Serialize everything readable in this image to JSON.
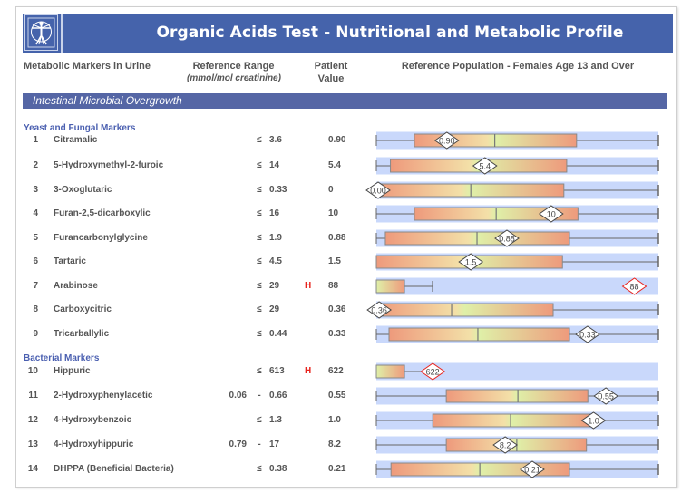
{
  "header": {
    "title": "Organic Acids Test - Nutritional and Metabolic Profile",
    "logo_icon": "vitruvian-man-icon"
  },
  "columns": {
    "marker": "Metabolic Markers in Urine",
    "reference_range": "Reference Range",
    "reference_units": "(mmol/mol creatinine)",
    "patient_line1": "Patient",
    "patient_line2": "Value",
    "population": "Reference Population - Females Age 13 and Over"
  },
  "section": {
    "title": "Intestinal Microbial Overgrowth"
  },
  "groups": [
    {
      "title": "Yeast and Fungal Markers"
    },
    {
      "title": "Bacterial Markers"
    }
  ],
  "colors": {
    "header_bg": "#4563ab",
    "section_bg": "#5566a5",
    "band_bg": "#c9d8fb",
    "box_outer": "#ee9a7c",
    "box_mid": "#f3e0a8",
    "box_center": "#dff0a8",
    "flag_high": "#e8231d",
    "group_title": "#4a5fb0"
  },
  "chart_data": {
    "type": "box-range",
    "title": "Reference Population - Females Age 13 and Over",
    "rows": [
      {
        "num": "1",
        "name": "Citramalic",
        "ref_low": "",
        "ref_sep": "≤",
        "ref_high": "3.6",
        "flag": "",
        "value": "0.90",
        "label": "0.90",
        "box": [
          0.135,
          0.71
        ],
        "median": 0.42,
        "whisker": [
          0,
          1
        ],
        "marker": 0.25,
        "high": false
      },
      {
        "num": "2",
        "name": "5-Hydroxymethyl-2-furoic",
        "ref_low": "",
        "ref_sep": "≤",
        "ref_high": "14",
        "flag": "",
        "value": "5.4",
        "label": "5.4",
        "box": [
          0.05,
          0.675
        ],
        "median": null,
        "whisker": [
          0,
          1
        ],
        "marker": 0.385,
        "high": false
      },
      {
        "num": "3",
        "name": "3-Oxoglutaric",
        "ref_low": "",
        "ref_sep": "≤",
        "ref_high": "0.33",
        "flag": "",
        "value": "0",
        "label": "0.00",
        "box": [
          0,
          0.665
        ],
        "median": 0.335,
        "whisker": [
          0,
          1
        ],
        "marker": 0,
        "high": false
      },
      {
        "num": "4",
        "name": "Furan-2,5-dicarboxylic",
        "ref_low": "",
        "ref_sep": "≤",
        "ref_high": "16",
        "flag": "",
        "value": "10",
        "label": "10",
        "box": [
          0.135,
          0.715
        ],
        "median": 0.425,
        "whisker": [
          0,
          1
        ],
        "marker": 0.62,
        "high": false
      },
      {
        "num": "5",
        "name": "Furancarbonylglycine",
        "ref_low": "",
        "ref_sep": "≤",
        "ref_high": "1.9",
        "flag": "",
        "value": "0.88",
        "label": "0.88",
        "box": [
          0.032,
          0.685
        ],
        "median": 0.357,
        "whisker": [
          0,
          1
        ],
        "marker": 0.463,
        "high": false
      },
      {
        "num": "6",
        "name": "Tartaric",
        "ref_low": "",
        "ref_sep": "≤",
        "ref_high": "4.5",
        "flag": "",
        "value": "1.5",
        "label": "1.5",
        "box": [
          0,
          0.66
        ],
        "median": null,
        "whisker": [
          0,
          1
        ],
        "marker": 0.335,
        "high": false
      },
      {
        "num": "7",
        "name": "Arabinose",
        "ref_low": "",
        "ref_sep": "≤",
        "ref_high": "29",
        "flag": "H",
        "value": "88",
        "label": "88",
        "box": [
          0,
          0.1
        ],
        "median": null,
        "whisker": [
          0,
          0.2
        ],
        "marker": 0.915,
        "high": true
      },
      {
        "num": "8",
        "name": "Carboxycitric",
        "ref_low": "",
        "ref_sep": "≤",
        "ref_high": "29",
        "flag": "",
        "value": "0.36",
        "label": "0.36",
        "box": [
          0,
          0.627
        ],
        "median": 0.267,
        "whisker": [
          0,
          1
        ],
        "marker": 0.01,
        "high": false
      },
      {
        "num": "9",
        "name": "Tricarballylic",
        "ref_low": "",
        "ref_sep": "≤",
        "ref_high": "0.44",
        "flag": "",
        "value": "0.33",
        "label": "0.33",
        "box": [
          0.045,
          0.685
        ],
        "median": 0.36,
        "whisker": [
          0,
          1
        ],
        "marker": 0.749,
        "high": false
      },
      {
        "num": "10",
        "name": "Hippuric",
        "ref_low": "",
        "ref_sep": "≤",
        "ref_high": "613",
        "flag": "H",
        "value": "622",
        "label": "622",
        "box": [
          0,
          0.1
        ],
        "median": null,
        "whisker": [
          0,
          0.2
        ],
        "marker": 0.2,
        "high": true
      },
      {
        "num": "11",
        "name": "2-Hydroxyphenylacetic",
        "ref_low": "0.06",
        "ref_sep": "-",
        "ref_high": "0.66",
        "flag": "",
        "value": "0.55",
        "label": "0.55",
        "box": [
          0.248,
          0.75
        ],
        "median": 0.502,
        "whisker": [
          0,
          1
        ],
        "marker": 0.814,
        "high": false
      },
      {
        "num": "12",
        "name": "4-Hydroxybenzoic",
        "ref_low": "",
        "ref_sep": "≤",
        "ref_high": "1.3",
        "flag": "",
        "value": "1.0",
        "label": "1.0",
        "box": [
          0.2,
          0.763
        ],
        "median": 0.476,
        "whisker": [
          0,
          1
        ],
        "marker": 0.77,
        "high": false
      },
      {
        "num": "13",
        "name": "4-Hydroxyhippuric",
        "ref_low": "0.79",
        "ref_sep": "-",
        "ref_high": "17",
        "flag": "",
        "value": "8.2",
        "label": "8.2",
        "box": [
          0.248,
          0.745
        ],
        "median": 0.498,
        "whisker": [
          0,
          1
        ],
        "marker": 0.457,
        "high": false
      },
      {
        "num": "14",
        "name": "DHPPA (Beneficial Bacteria)",
        "ref_low": "",
        "ref_sep": "≤",
        "ref_high": "0.38",
        "flag": "",
        "value": "0.21",
        "label": "0.21",
        "box": [
          0.052,
          0.685
        ],
        "median": 0.367,
        "whisker": [
          0,
          1
        ],
        "marker": 0.553,
        "high": false
      }
    ]
  }
}
